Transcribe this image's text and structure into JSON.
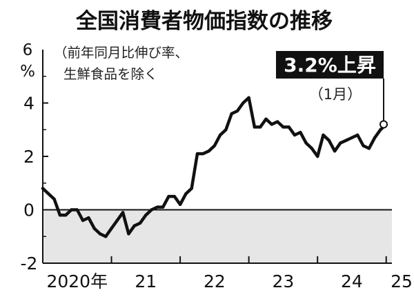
{
  "chart_data": {
    "type": "line",
    "title": "全国消費者物価指数の推移",
    "note_lines": [
      "（前年同月比伸び率、",
      "生鮮食品を除く"
    ],
    "yunit_top": "6",
    "yunit_bottom": "%",
    "ylim": [
      -2,
      6
    ],
    "yticks": [
      {
        "value": 4,
        "label": "4"
      },
      {
        "value": 2,
        "label": "2"
      },
      {
        "value": 0,
        "label": "0"
      },
      {
        "value": -2,
        "label": "-2"
      }
    ],
    "xlim": [
      2020.0,
      2025.0833
    ],
    "xticks": [
      {
        "value": 2020.5,
        "label": "2020年"
      },
      {
        "value": 2021.5,
        "label": "21"
      },
      {
        "value": 2022.5,
        "label": "22"
      },
      {
        "value": 2023.5,
        "label": "23"
      },
      {
        "value": 2024.5,
        "label": "24"
      },
      {
        "value": 2025.5,
        "label": "25"
      }
    ],
    "grid": false,
    "negative_region_shaded": true,
    "colors": {
      "line": "#111111",
      "shade": "#e6e6e6",
      "callout_bg": "#111111",
      "callout_text": "#ffffff"
    },
    "series": [
      {
        "x": [
          "2020-01",
          "2020-02",
          "2020-03",
          "2020-04",
          "2020-05",
          "2020-06",
          "2020-07",
          "2020-08",
          "2020-09",
          "2020-10",
          "2020-11",
          "2020-12",
          "2021-01",
          "2021-02",
          "2021-03",
          "2021-04",
          "2021-05",
          "2021-06",
          "2021-07",
          "2021-08",
          "2021-09",
          "2021-10",
          "2021-11",
          "2021-12",
          "2022-01",
          "2022-02",
          "2022-03",
          "2022-04",
          "2022-05",
          "2022-06",
          "2022-07",
          "2022-08",
          "2022-09",
          "2022-10",
          "2022-11",
          "2022-12",
          "2023-01",
          "2023-02",
          "2023-03",
          "2023-04",
          "2023-05",
          "2023-06",
          "2023-07",
          "2023-08",
          "2023-09",
          "2023-10",
          "2023-11",
          "2023-12",
          "2024-01",
          "2024-02",
          "2024-03",
          "2024-04",
          "2024-05",
          "2024-06",
          "2024-07",
          "2024-08",
          "2024-09",
          "2024-10",
          "2024-11",
          "2024-12",
          "2025-01"
        ],
        "values": [
          0.8,
          0.6,
          0.4,
          -0.2,
          -0.2,
          0.0,
          0.0,
          -0.4,
          -0.3,
          -0.7,
          -0.9,
          -1.0,
          -0.7,
          -0.4,
          -0.1,
          -0.9,
          -0.6,
          -0.5,
          -0.2,
          0.0,
          0.1,
          0.1,
          0.5,
          0.5,
          0.2,
          0.6,
          0.8,
          2.1,
          2.1,
          2.2,
          2.4,
          2.8,
          3.0,
          3.6,
          3.7,
          4.0,
          4.2,
          3.1,
          3.1,
          3.4,
          3.2,
          3.3,
          3.1,
          3.1,
          2.8,
          2.9,
          2.5,
          2.3,
          2.0,
          2.8,
          2.6,
          2.2,
          2.5,
          2.6,
          2.7,
          2.8,
          2.4,
          2.3,
          2.7,
          3.0,
          3.2
        ]
      }
    ],
    "callout": {
      "text": "3.2%上昇",
      "sub": "（1月）"
    }
  }
}
